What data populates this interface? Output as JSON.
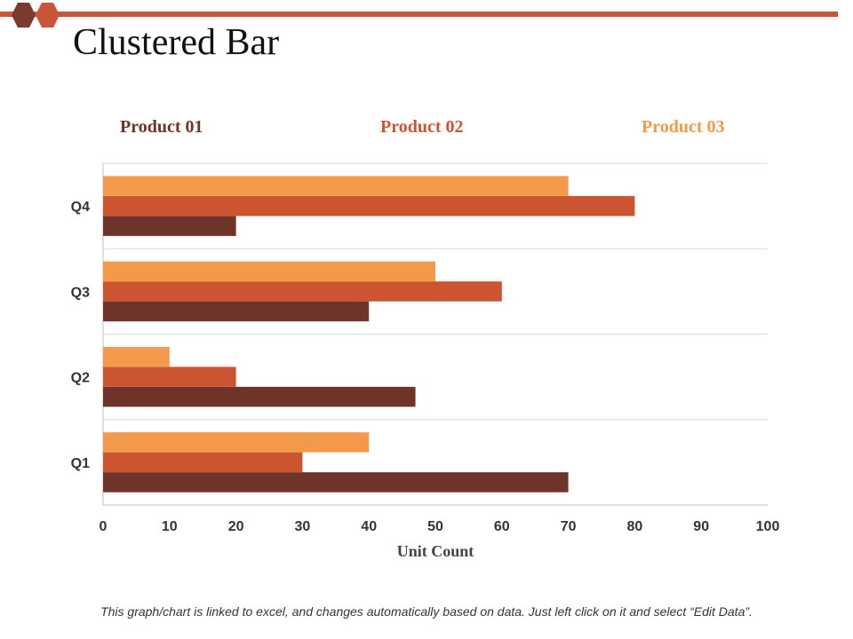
{
  "slide": {
    "title": "Clustered Bar",
    "footnote": "This graph/chart is linked to excel, and changes automatically based on data. Just left click on it and select “Edit Data”."
  },
  "colors": {
    "accent_line": "#c8553a",
    "hex_dark": "#7a3a2e",
    "hex_light": "#c8553a",
    "grid": "#d9d9d9",
    "axis": "#bfbfbf"
  },
  "chart_data": {
    "type": "bar",
    "orientation": "horizontal",
    "categories": [
      "Q1",
      "Q2",
      "Q3",
      "Q4"
    ],
    "series": [
      {
        "name": "Product 01",
        "color": "#6e3329",
        "values": [
          70,
          47,
          40,
          20
        ]
      },
      {
        "name": "Product 02",
        "color": "#cb5531",
        "values": [
          30,
          20,
          60,
          80
        ]
      },
      {
        "name": "Product 03",
        "color": "#f29a4a",
        "values": [
          40,
          10,
          50,
          70
        ]
      }
    ],
    "xlabel": "Unit Count",
    "ylabel": "",
    "xlim": [
      0,
      100
    ],
    "xticks": [
      "0",
      "10",
      "20",
      "30",
      "40",
      "50",
      "60",
      "70",
      "80",
      "90",
      "100"
    ],
    "legend_position": "top",
    "grid": true
  }
}
